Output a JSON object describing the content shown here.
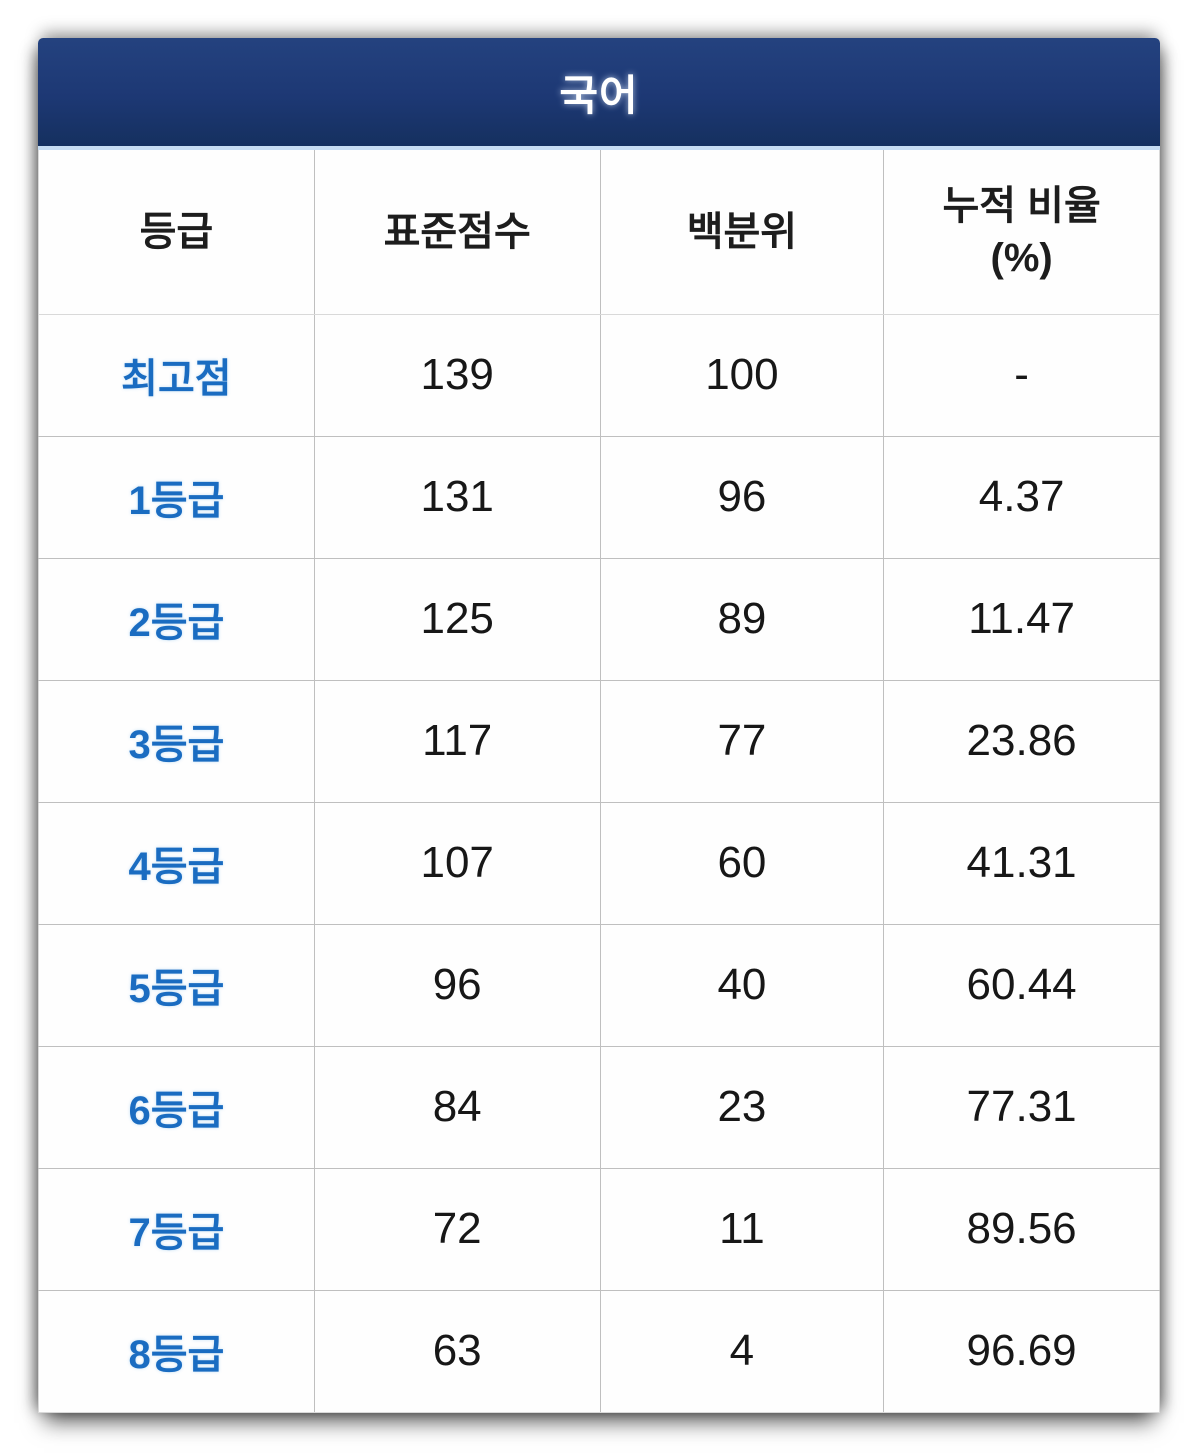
{
  "title": "국어",
  "table": {
    "columns": [
      {
        "label": "등급"
      },
      {
        "label": "표준점수"
      },
      {
        "label": "백분위"
      },
      {
        "label": "누적 비율\n(%)"
      }
    ],
    "rows": [
      {
        "grade": "최고점",
        "std": "139",
        "pct": "100",
        "cum": "-"
      },
      {
        "grade": "1등급",
        "std": "131",
        "pct": "96",
        "cum": "4.37"
      },
      {
        "grade": "2등급",
        "std": "125",
        "pct": "89",
        "cum": "11.47"
      },
      {
        "grade": "3등급",
        "std": "117",
        "pct": "77",
        "cum": "23.86"
      },
      {
        "grade": "4등급",
        "std": "107",
        "pct": "60",
        "cum": "41.31"
      },
      {
        "grade": "5등급",
        "std": "96",
        "pct": "40",
        "cum": "60.44"
      },
      {
        "grade": "6등급",
        "std": "84",
        "pct": "23",
        "cum": "77.31"
      },
      {
        "grade": "7등급",
        "std": "72",
        "pct": "11",
        "cum": "89.56"
      },
      {
        "grade": "8등급",
        "std": "63",
        "pct": "4",
        "cum": "96.69"
      }
    ]
  },
  "colors": {
    "header_gradient_top": "#24427f",
    "header_gradient_bottom": "#15305f",
    "header_underline": "#c6dcf2",
    "title_text": "#ffffff",
    "grade_text": "#1a6cc1",
    "value_text": "#171717",
    "cell_border": "#bfbfbf"
  },
  "chart_data": {
    "type": "table",
    "title": "국어",
    "columns": [
      "등급",
      "표준점수",
      "백분위",
      "누적 비율 (%)"
    ],
    "rows": [
      [
        "최고점",
        139,
        100,
        "-"
      ],
      [
        "1등급",
        131,
        96,
        4.37
      ],
      [
        "2등급",
        125,
        89,
        11.47
      ],
      [
        "3등급",
        117,
        77,
        23.86
      ],
      [
        "4등급",
        107,
        60,
        41.31
      ],
      [
        "5등급",
        96,
        40,
        60.44
      ],
      [
        "6등급",
        84,
        23,
        77.31
      ],
      [
        "7등급",
        72,
        11,
        89.56
      ],
      [
        "8등급",
        63,
        4,
        96.69
      ]
    ]
  }
}
